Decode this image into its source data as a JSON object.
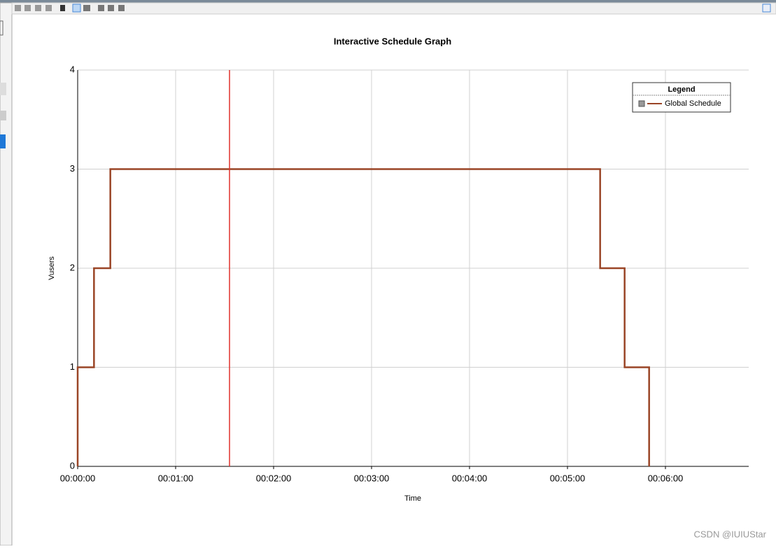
{
  "chart_data": {
    "type": "line",
    "title": "Interactive Schedule Graph",
    "x_label": "Time",
    "y_label": "Vusers",
    "x": [
      0,
      0,
      10,
      10,
      20,
      20,
      320,
      320,
      335,
      335,
      350,
      350
    ],
    "series": [
      {
        "name": "Global Schedule",
        "color": "#9a4526",
        "values": [
          0,
          1,
          1,
          2,
          2,
          3,
          3,
          2,
          2,
          1,
          1,
          0
        ]
      }
    ],
    "xlim": [
      0,
      411
    ],
    "ylim": [
      0,
      4
    ],
    "xticks": [
      {
        "value": 0,
        "label": "00:00:00"
      },
      {
        "value": 60,
        "label": "00:01:00"
      },
      {
        "value": 120,
        "label": "00:02:00"
      },
      {
        "value": 180,
        "label": "00:03:00"
      },
      {
        "value": 240,
        "label": "00:04:00"
      },
      {
        "value": 300,
        "label": "00:05:00"
      },
      {
        "value": 360,
        "label": "00:06:00"
      }
    ],
    "yticks": [
      0,
      1,
      2,
      3,
      4
    ],
    "grid": true,
    "legend_title": "Legend",
    "legend_position": "upper right",
    "marker_x": 93,
    "marker_color": "#e0302c"
  },
  "watermark": "CSDN @IUIUStar"
}
